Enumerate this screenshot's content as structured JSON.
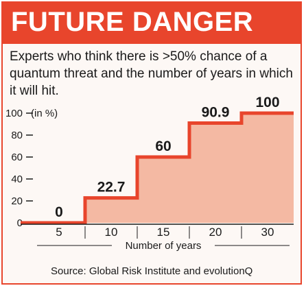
{
  "header": {
    "title": "FUTURE DANGER"
  },
  "subtitle": "Experts who think there is >50% chance of a quantum threat and the number of years in which it will hit.",
  "source": "Source: Global Risk Institute and evolutionQ",
  "colors": {
    "accent": "#e8452c",
    "fill": "#f4b9a3",
    "background": "#fdf8f5",
    "text": "#1a1a1a"
  },
  "chart_data": {
    "type": "area",
    "title": "",
    "xlabel": "Number of years",
    "ylabel": "(in %)",
    "categories": [
      "5",
      "10",
      "15",
      "20",
      "30"
    ],
    "values": [
      0,
      22.7,
      60,
      90.9,
      100
    ],
    "data_labels": [
      "0",
      "22.7",
      "60",
      "90.9",
      "100"
    ],
    "yticks": [
      0,
      20,
      40,
      60,
      80,
      100
    ],
    "ylim": [
      0,
      100
    ],
    "grid": false,
    "style": "step"
  }
}
